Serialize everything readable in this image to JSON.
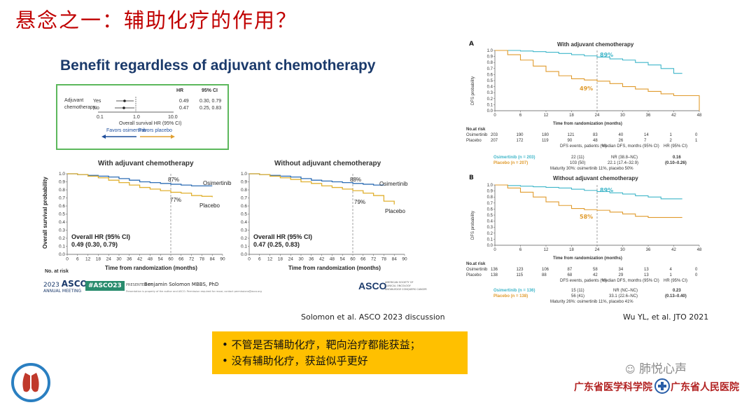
{
  "slide": {
    "title": "悬念之一：辅助化疗的作用？",
    "headline": "Benefit regardless of adjuvant chemotherapy"
  },
  "forest": {
    "hr_header": "HR",
    "ci_header": "95% CI",
    "group_label_1": "Adjuvant",
    "group_label_2": "chemotherapy",
    "rows": [
      {
        "label": "Yes",
        "hr": "0.49",
        "ci": "0.30, 0.79"
      },
      {
        "label": "No",
        "hr": "0.47",
        "ci": "0.25, 0.83"
      }
    ],
    "ticks": [
      "0.1",
      "1.0",
      "10.0"
    ],
    "axis_label": "Overall survival HR (95% CI)",
    "favors_left": "Favors osimertinib",
    "favors_right": "Favors placebo"
  },
  "chart_data": [
    {
      "type": "line",
      "title": "With adjuvant chemotherapy",
      "xlabel": "Time from randomization (months)",
      "ylabel": "Overall survival probability",
      "x_ticks": [
        0,
        6,
        12,
        18,
        24,
        30,
        36,
        42,
        48,
        54,
        60,
        66,
        72,
        78,
        84,
        90
      ],
      "y_ticks": [
        0,
        0.1,
        0.2,
        0.3,
        0.4,
        0.5,
        0.6,
        0.7,
        0.8,
        0.9,
        1.0
      ],
      "xlim": [
        0,
        90
      ],
      "ylim": [
        0,
        1.0
      ],
      "series": [
        {
          "name": "Osimertinib",
          "color": "#2f6eb5",
          "x": [
            0,
            6,
            12,
            18,
            24,
            30,
            36,
            42,
            48,
            54,
            60,
            66,
            72,
            78,
            84
          ],
          "y": [
            1.0,
            0.99,
            0.98,
            0.97,
            0.96,
            0.94,
            0.92,
            0.9,
            0.89,
            0.88,
            0.87,
            0.86,
            0.85,
            0.85,
            0.85
          ]
        },
        {
          "name": "Placebo",
          "color": "#e0b030",
          "x": [
            0,
            6,
            12,
            18,
            24,
            30,
            36,
            42,
            48,
            54,
            60,
            66,
            72,
            78,
            84
          ],
          "y": [
            1.0,
            0.99,
            0.97,
            0.95,
            0.92,
            0.89,
            0.86,
            0.83,
            0.81,
            0.79,
            0.77,
            0.76,
            0.73,
            0.72,
            0.71
          ]
        }
      ],
      "annotations": [
        "87%",
        "77%"
      ],
      "hr_label": "Overall HR (95% CI)",
      "hr_value": "0.49 (0.30, 0.79)"
    },
    {
      "type": "line",
      "title": "Without adjuvant chemotherapy",
      "xlabel": "Time from randomization (months)",
      "ylabel": "",
      "x_ticks": [
        0,
        6,
        12,
        18,
        24,
        30,
        36,
        42,
        48,
        54,
        60,
        66,
        72,
        78,
        84,
        90
      ],
      "y_ticks": [
        0,
        0.1,
        0.2,
        0.3,
        0.4,
        0.5,
        0.6,
        0.7,
        0.8,
        0.9,
        1.0
      ],
      "xlim": [
        0,
        90
      ],
      "ylim": [
        0,
        1.0
      ],
      "series": [
        {
          "name": "Osimertinib",
          "color": "#2f6eb5",
          "x": [
            0,
            6,
            12,
            18,
            24,
            30,
            36,
            42,
            48,
            54,
            60,
            66,
            72,
            78
          ],
          "y": [
            1.0,
            0.99,
            0.98,
            0.97,
            0.96,
            0.94,
            0.92,
            0.91,
            0.9,
            0.89,
            0.88,
            0.87,
            0.86,
            0.86
          ]
        },
        {
          "name": "Placebo",
          "color": "#e0b030",
          "x": [
            0,
            6,
            12,
            18,
            24,
            30,
            36,
            42,
            48,
            54,
            60,
            66,
            72,
            78,
            84
          ],
          "y": [
            1.0,
            0.99,
            0.97,
            0.95,
            0.93,
            0.9,
            0.88,
            0.85,
            0.83,
            0.81,
            0.79,
            0.76,
            0.73,
            0.66,
            0.62
          ]
        }
      ],
      "annotations": [
        "88%",
        "79%"
      ],
      "hr_label": "Overall HR (95% CI)",
      "hr_value": "0.47 (0.25, 0.83)"
    },
    {
      "type": "line",
      "panel": "A",
      "title": "With adjuvant chemotherapy",
      "xlabel": "Time from randomization (months)",
      "ylabel": "DFS probability",
      "x_ticks": [
        0,
        6,
        12,
        18,
        24,
        30,
        36,
        42,
        48
      ],
      "y_ticks": [
        0,
        0.1,
        0.2,
        0.3,
        0.4,
        0.5,
        0.6,
        0.7,
        0.8,
        0.9,
        1.0
      ],
      "xlim": [
        0,
        48
      ],
      "ylim": [
        0,
        1.0
      ],
      "series": [
        {
          "name": "Osimertinib",
          "color": "#3fb6c9",
          "x": [
            0,
            3,
            6,
            9,
            12,
            15,
            18,
            21,
            24,
            27,
            30,
            33,
            36,
            39,
            42,
            44
          ],
          "y": [
            1.0,
            1.0,
            0.99,
            0.98,
            0.97,
            0.95,
            0.93,
            0.91,
            0.89,
            0.86,
            0.84,
            0.8,
            0.76,
            0.7,
            0.62,
            0.62
          ]
        },
        {
          "name": "Placebo",
          "color": "#e09b2d",
          "x": [
            0,
            3,
            6,
            9,
            12,
            15,
            18,
            21,
            24,
            27,
            30,
            33,
            36,
            39,
            42,
            45,
            47,
            48
          ],
          "y": [
            1.0,
            0.93,
            0.84,
            0.74,
            0.65,
            0.58,
            0.53,
            0.51,
            0.49,
            0.45,
            0.4,
            0.36,
            0.32,
            0.28,
            0.25,
            0.25,
            0.25,
            0.0
          ]
        }
      ],
      "annotations": [
        "89%",
        "49%"
      ],
      "at_risk": {
        "label": "No.at risk",
        "rows": [
          {
            "name": "Osimertinib",
            "values": [
              "203",
              "190",
              "180",
              "121",
              "83",
              "40",
              "14",
              "1",
              "0"
            ]
          },
          {
            "name": "Placebo",
            "values": [
              "207",
              "172",
              "119",
              "90",
              "48",
              "26",
              "7",
              "2",
              "1"
            ]
          }
        ]
      },
      "table": {
        "headers": [
          "",
          "DFS events, patients (%)",
          "Median DFS, months (95% CI)",
          "HR (95% CI)"
        ],
        "rows": [
          [
            "Osimertinib (n = 203)",
            "22 (11)",
            "NR (38.8–NC)",
            "0.16"
          ],
          [
            "Placebo (n = 207)",
            "103 (50)",
            "22.1 (17.4–32.9)",
            "(0.10–0.26)"
          ]
        ],
        "footnote": "Maturity 30%: osimertinib 11%, placebo 50%"
      }
    },
    {
      "type": "line",
      "panel": "B",
      "title": "Without adjuvant chemotherapy",
      "xlabel": "Time from randomization (months)",
      "ylabel": "DFS probability",
      "x_ticks": [
        0,
        6,
        12,
        18,
        24,
        30,
        36,
        42,
        48
      ],
      "y_ticks": [
        0,
        0.1,
        0.2,
        0.3,
        0.4,
        0.5,
        0.6,
        0.7,
        0.8,
        0.9,
        1.0
      ],
      "xlim": [
        0,
        48
      ],
      "ylim": [
        0,
        1.0
      ],
      "series": [
        {
          "name": "Osimertinib",
          "color": "#3fb6c9",
          "x": [
            0,
            3,
            6,
            9,
            12,
            15,
            18,
            21,
            24,
            27,
            30,
            33,
            36,
            39,
            42,
            44
          ],
          "y": [
            1.0,
            0.99,
            0.98,
            0.97,
            0.96,
            0.95,
            0.93,
            0.91,
            0.89,
            0.87,
            0.85,
            0.82,
            0.8,
            0.77,
            0.77,
            0.77
          ]
        },
        {
          "name": "Placebo",
          "color": "#e09b2d",
          "x": [
            0,
            3,
            6,
            9,
            12,
            15,
            18,
            21,
            24,
            27,
            30,
            33,
            36,
            39,
            42,
            44
          ],
          "y": [
            1.0,
            0.95,
            0.88,
            0.8,
            0.72,
            0.66,
            0.61,
            0.59,
            0.58,
            0.55,
            0.52,
            0.48,
            0.46,
            0.46,
            0.46,
            0.46
          ]
        }
      ],
      "annotations": [
        "89%",
        "58%"
      ],
      "at_risk": {
        "label": "No.at risk",
        "rows": [
          {
            "name": "Osimertinib",
            "values": [
              "136",
              "123",
              "106",
              "87",
              "58",
              "34",
              "13",
              "4",
              "0"
            ]
          },
          {
            "name": "Placebo",
            "values": [
              "138",
              "115",
              "88",
              "68",
              "42",
              "29",
              "13",
              "1",
              "0"
            ]
          }
        ]
      },
      "table": {
        "headers": [
          "",
          "DFS events, patients (%)",
          "Median DFS, months (95% CI)",
          "HR (95% CI)"
        ],
        "rows": [
          [
            "Osimertinib (n = 136)",
            "15 (11)",
            "NR (NC–NC)",
            "0.23"
          ],
          [
            "Placebo (n = 138)",
            "56 (41)",
            "33.1 (22.6–NC)",
            "(0.13–0.40)"
          ]
        ],
        "footnote": "Maturity 26%: osimertinib 11%, placebo 41%"
      }
    }
  ],
  "left_km": {
    "at_risk_label": "No. at risk"
  },
  "footer": {
    "asco_year": "2023",
    "asco_brand": "ASCO",
    "asco_meeting": "ANNUAL MEETING",
    "hashtag": "#ASCO23",
    "presented_by": "PRESENTED BY:",
    "presenter": "Benjamin Solomon MBBS, PhD",
    "disclaimer": "Presentation is property of the author and ASCO. Permission required for reuse; contact permissions@asco.org",
    "asco_logo": "ASCO",
    "asco_tagline": "KNOWLEDGE CONQUERS CANCER",
    "asco_society_1": "AMERICAN SOCIETY OF",
    "asco_society_2": "CLINICAL ONCOLOGY"
  },
  "citations": {
    "left": "Solomon et al. ASCO 2023 discussion",
    "right": "Wu YL, et al. JTO 2021"
  },
  "summary": {
    "bullets": [
      "• 不管是否辅助化疗，靶向治疗都能获益；",
      "• 没有辅助化疗，获益似乎更好"
    ]
  },
  "branding": {
    "wechat": "肺悦心声",
    "inst_left": "广东省医学科学院",
    "inst_right": "广东省人民医院"
  },
  "colors": {
    "title_red": "#c00000",
    "osimertinib_blue": "#2f6eb5",
    "placebo_gold": "#e0b030",
    "summary_bg": "#ffc000",
    "forest_border": "#5cb85c"
  }
}
